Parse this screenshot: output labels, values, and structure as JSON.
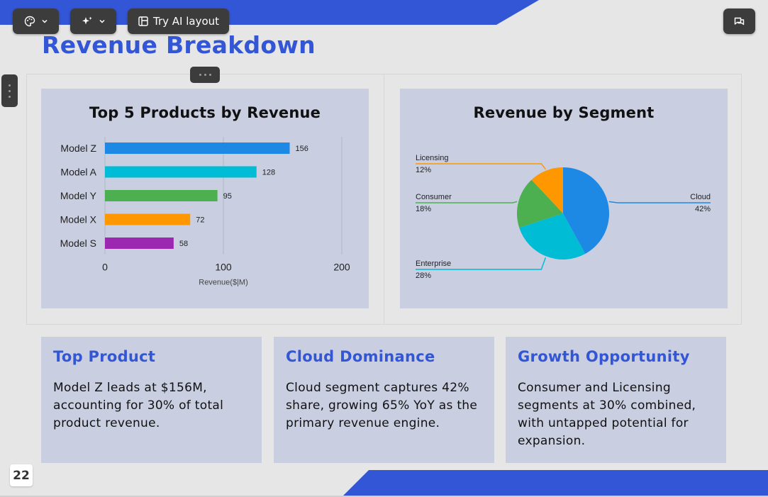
{
  "toolbar": {
    "theme_icon": "palette-icon",
    "ai_icon": "sparkles-icon",
    "try_ai_label": "Try AI layout",
    "layout_icon": "layout-icon",
    "comment_icon": "comment-icon"
  },
  "slide": {
    "title": "Revenue Breakdown",
    "page_number": "22"
  },
  "charts": {
    "bar_title": "Top 5 Products by Revenue",
    "pie_title": "Revenue by Segment"
  },
  "chart_data": [
    {
      "type": "bar",
      "orientation": "horizontal",
      "title": "Top 5 Products by Revenue",
      "categories": [
        "Model Z",
        "Model A",
        "Model Y",
        "Model X",
        "Model S"
      ],
      "values": [
        156,
        128,
        95,
        72,
        58
      ],
      "colors": [
        "#1e88e5",
        "#00bcd4",
        "#4caf50",
        "#ff9800",
        "#9c27b0"
      ],
      "xlabel": "Revenue($|M)",
      "xlim": [
        0,
        200
      ],
      "xticks": [
        0,
        100,
        200
      ],
      "data_labels": true,
      "grid": true
    },
    {
      "type": "pie",
      "title": "Revenue by Segment",
      "slices": [
        {
          "label": "Cloud",
          "value": 42,
          "display": "42%",
          "color": "#1e88e5"
        },
        {
          "label": "Enterprise",
          "value": 28,
          "display": "28%",
          "color": "#00bcd4"
        },
        {
          "label": "Consumer",
          "value": 18,
          "display": "18%",
          "color": "#4caf50"
        },
        {
          "label": "Licensing",
          "value": 12,
          "display": "12%",
          "color": "#ff9800"
        }
      ],
      "label_style": "leader-lines"
    }
  ],
  "insights": [
    {
      "title": "Top Product",
      "body": "Model Z leads at $156M, accounting for 30% of total product revenue."
    },
    {
      "title": "Cloud Dominance",
      "body": "Cloud segment captures 42% share, growing 65% YoY as the primary revenue engine."
    },
    {
      "title": "Growth Opportunity",
      "body": "Consumer and Licensing segments at 30% combined, with untapped potential for expansion."
    }
  ]
}
